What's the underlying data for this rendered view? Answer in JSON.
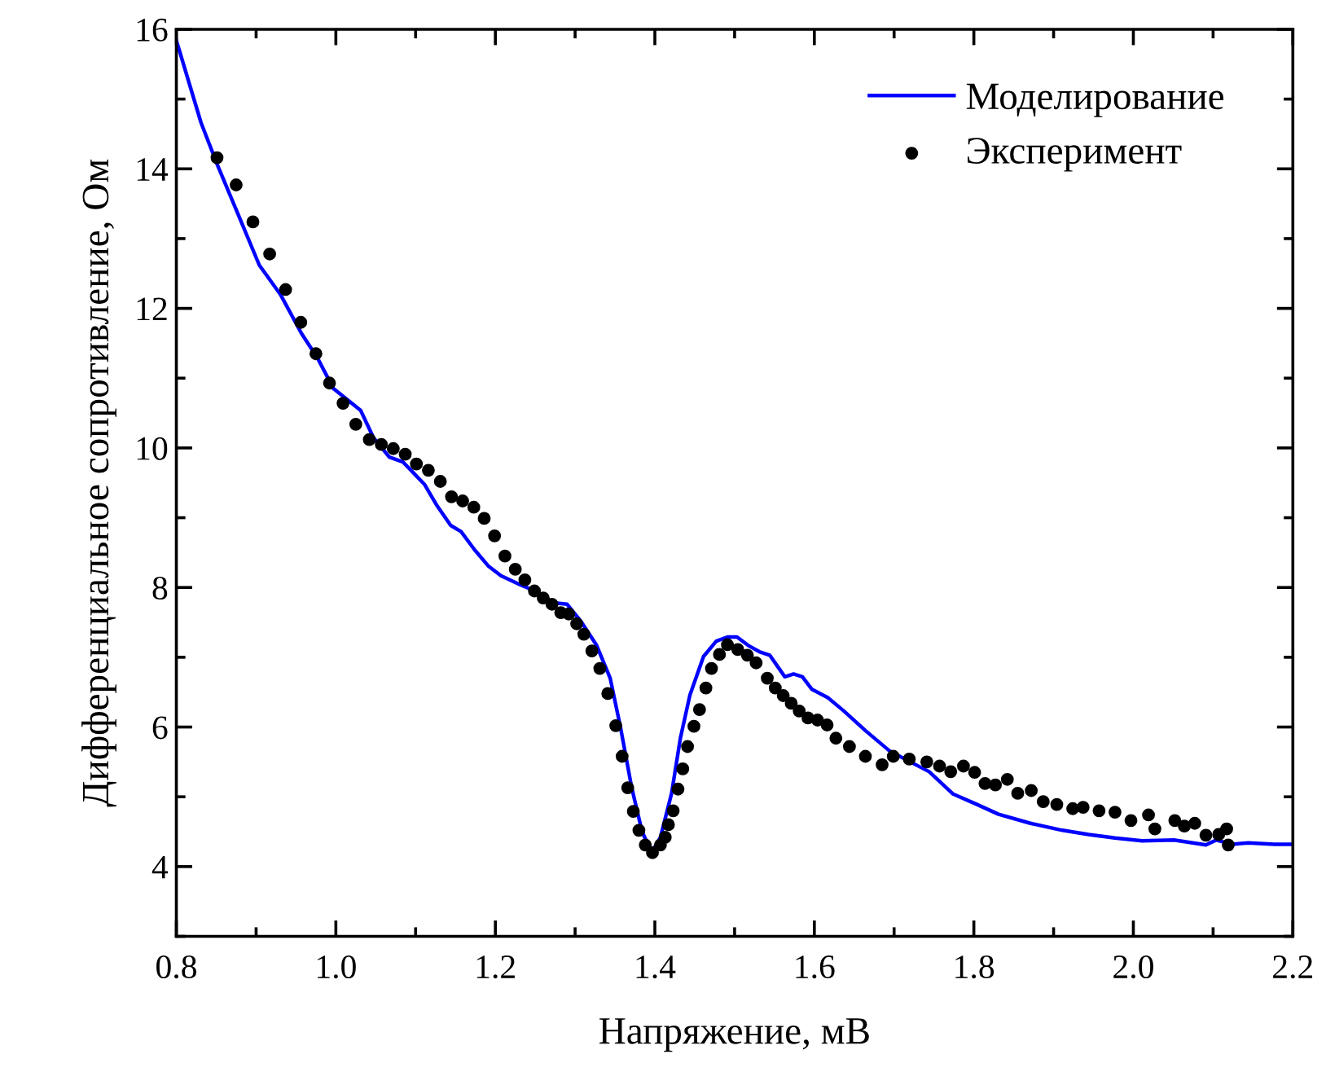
{
  "chart_data": {
    "type": "line",
    "xlabel": "Напряжение, мВ",
    "ylabel": "Дифференциальное сопротивление, Ом",
    "xlim": [
      0.8,
      2.2
    ],
    "xticks": [
      {
        "value": 0.8,
        "label": "0.8"
      },
      {
        "value": 1.0,
        "label": "1.0"
      },
      {
        "value": 1.2,
        "label": "1.2"
      },
      {
        "value": 1.4,
        "label": "1.4"
      },
      {
        "value": 1.6,
        "label": "1.6"
      },
      {
        "value": 1.8,
        "label": "1.8"
      },
      {
        "value": 2.0,
        "label": "2.0"
      },
      {
        "value": 2.2,
        "label": "2.2"
      }
    ],
    "ylim": [
      3,
      16
    ],
    "yticks": [
      4,
      6,
      8,
      10,
      12,
      14,
      16
    ],
    "grid": false,
    "legend": "top right",
    "series": [
      {
        "name": "Моделирование",
        "color": "#0000ff",
        "marker": "none",
        "line_style": "solid",
        "x": [
          0.8,
          0.831,
          0.851,
          0.877,
          0.904,
          0.931,
          0.957,
          0.977,
          0.997,
          1.031,
          1.047,
          1.067,
          1.084,
          1.111,
          1.127,
          1.144,
          1.157,
          1.174,
          1.191,
          1.207,
          1.233,
          1.25,
          1.273,
          1.29,
          1.307,
          1.327,
          1.344,
          1.357,
          1.371,
          1.384,
          1.396,
          1.407,
          1.421,
          1.432,
          1.444,
          1.461,
          1.477,
          1.491,
          1.503,
          1.517,
          1.531,
          1.544,
          1.563,
          1.574,
          1.585,
          1.597,
          1.617,
          1.637,
          1.664,
          1.694,
          1.717,
          1.744,
          1.774,
          1.804,
          1.831,
          1.871,
          1.911,
          1.944,
          1.977,
          2.011,
          2.051,
          2.091,
          2.104,
          2.124,
          2.144,
          2.177,
          2.2
        ],
        "values": [
          15.84,
          14.66,
          14.07,
          13.36,
          12.62,
          12.19,
          11.64,
          11.29,
          10.85,
          10.54,
          10.15,
          9.87,
          9.8,
          9.48,
          9.17,
          8.89,
          8.8,
          8.54,
          8.31,
          8.17,
          8.03,
          7.95,
          7.78,
          7.76,
          7.52,
          7.17,
          6.7,
          5.99,
          5.13,
          4.5,
          4.2,
          4.42,
          5.05,
          5.84,
          6.46,
          7.01,
          7.23,
          7.29,
          7.29,
          7.17,
          7.08,
          7.03,
          6.72,
          6.76,
          6.72,
          6.54,
          6.42,
          6.23,
          5.95,
          5.66,
          5.52,
          5.36,
          5.04,
          4.89,
          4.75,
          4.62,
          4.52,
          4.46,
          4.41,
          4.37,
          4.38,
          4.31,
          4.38,
          4.32,
          4.34,
          4.32,
          4.32
        ]
      },
      {
        "name": "Эксперимент",
        "type": "scatter",
        "color": "#000000",
        "marker": "circle",
        "x": [
          0.851,
          0.875,
          0.896,
          0.917,
          0.937,
          0.956,
          0.975,
          0.992,
          1.009,
          1.025,
          1.042,
          1.057,
          1.072,
          1.087,
          1.101,
          1.116,
          1.131,
          1.145,
          1.159,
          1.173,
          1.186,
          1.199,
          1.212,
          1.225,
          1.237,
          1.249,
          1.26,
          1.271,
          1.282,
          1.292,
          1.302,
          1.311,
          1.321,
          1.331,
          1.341,
          1.351,
          1.359,
          1.366,
          1.373,
          1.38,
          1.388,
          1.397,
          1.407,
          1.413,
          1.417,
          1.423,
          1.429,
          1.435,
          1.441,
          1.449,
          1.456,
          1.464,
          1.471,
          1.481,
          1.491,
          1.504,
          1.516,
          1.527,
          1.541,
          1.551,
          1.561,
          1.571,
          1.581,
          1.592,
          1.604,
          1.616,
          1.627,
          1.644,
          1.664,
          1.685,
          1.699,
          1.719,
          1.741,
          1.757,
          1.771,
          1.787,
          1.801,
          1.814,
          1.827,
          1.842,
          1.855,
          1.872,
          1.887,
          1.904,
          1.924,
          1.937,
          1.957,
          1.977,
          1.997,
          2.019,
          2.027,
          2.052,
          2.064,
          2.077,
          2.091,
          2.107,
          2.117,
          2.119
        ],
        "values": [
          14.16,
          13.77,
          13.24,
          12.78,
          12.27,
          11.8,
          11.35,
          10.93,
          10.64,
          10.34,
          10.12,
          10.05,
          9.99,
          9.91,
          9.77,
          9.68,
          9.52,
          9.3,
          9.24,
          9.15,
          8.99,
          8.74,
          8.45,
          8.26,
          8.11,
          7.95,
          7.85,
          7.76,
          7.64,
          7.62,
          7.48,
          7.33,
          7.09,
          6.84,
          6.48,
          6.02,
          5.58,
          5.13,
          4.79,
          4.52,
          4.31,
          4.2,
          4.31,
          4.42,
          4.6,
          4.8,
          5.11,
          5.4,
          5.72,
          6.01,
          6.25,
          6.56,
          6.84,
          7.04,
          7.18,
          7.11,
          7.03,
          6.92,
          6.7,
          6.56,
          6.45,
          6.34,
          6.23,
          6.13,
          6.1,
          6.03,
          5.84,
          5.72,
          5.58,
          5.46,
          5.58,
          5.54,
          5.5,
          5.44,
          5.36,
          5.44,
          5.35,
          5.19,
          5.17,
          5.25,
          5.05,
          5.09,
          4.93,
          4.89,
          4.83,
          4.85,
          4.8,
          4.78,
          4.66,
          4.74,
          4.54,
          4.66,
          4.58,
          4.62,
          4.45,
          4.46,
          4.54,
          4.31
        ]
      }
    ]
  }
}
